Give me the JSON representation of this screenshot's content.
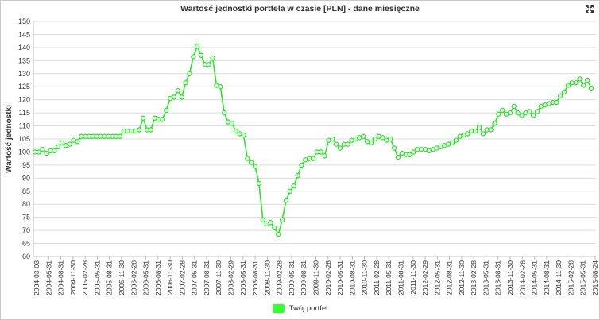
{
  "chart_data": {
    "type": "line",
    "title": "Wartość jednostki portfela w czasie [PLN] - dane miesięczne",
    "ylabel": "Wartość jednostki",
    "xlabel": "",
    "ylim": [
      60,
      150
    ],
    "yticks": [
      60,
      65,
      70,
      75,
      80,
      85,
      90,
      95,
      100,
      105,
      110,
      115,
      120,
      125,
      130,
      135,
      140,
      145,
      150
    ],
    "grid": true,
    "legend_position": "bottom",
    "x_tick_labels": [
      "2004-03-03",
      "2004-05-31",
      "2004-08-31",
      "2004-11-30",
      "2005-02-28",
      "2005-05-31",
      "2005-08-31",
      "2005-11-30",
      "2006-02-28",
      "2006-05-31",
      "2006-08-31",
      "2006-11-30",
      "2007-02-28",
      "2007-05-31",
      "2007-08-31",
      "2007-11-30",
      "2008-02-29",
      "2008-05-31",
      "2008-08-31",
      "2008-11-30",
      "2009-02-28",
      "2009-05-31",
      "2009-08-31",
      "2009-11-30",
      "2010-02-28",
      "2010-05-31",
      "2010-08-31",
      "2010-11-30",
      "2011-02-28",
      "2011-05-31",
      "2011-08-31",
      "2011-11-30",
      "2012-02-29",
      "2012-05-31",
      "2012-08-31",
      "2012-11-30",
      "2013-02-28",
      "2013-05-31",
      "2013-08-31",
      "2013-11-30",
      "2014-02-28",
      "2014-05-31",
      "2014-08-31",
      "2014-11-30",
      "2015-02-28",
      "2015-05-31",
      "2015-08-24"
    ],
    "series": [
      {
        "name": "Twój portfel",
        "color": "#33ff33",
        "stroke_color": "#33dd33",
        "values": [
          100,
          100,
          101,
          99.5,
          100.5,
          100.5,
          102,
          103.5,
          102.5,
          103,
          104.5,
          104,
          106,
          106,
          106,
          106,
          106,
          106,
          106,
          106,
          106,
          106,
          106,
          108,
          108,
          108,
          108,
          108.5,
          113,
          108.5,
          108.5,
          113,
          112.5,
          112.5,
          116,
          120.5,
          121,
          123.5,
          121,
          126.5,
          130,
          136.5,
          140.5,
          137,
          133.5,
          133.5,
          136,
          125.5,
          125,
          115,
          111.5,
          111,
          108,
          107,
          106.5,
          97.5,
          96,
          94.5,
          88,
          74,
          72.5,
          73,
          71,
          68.5,
          74,
          81.5,
          85,
          87,
          91,
          95,
          97,
          97.5,
          97.5,
          100,
          100,
          98.5,
          104.5,
          105,
          103,
          101.5,
          103,
          103,
          104.5,
          105,
          105.5,
          106,
          104,
          103.5,
          105,
          106,
          105.5,
          104.5,
          105,
          101.5,
          98,
          99.5,
          99,
          99,
          100,
          101,
          101,
          101,
          100.5,
          101,
          101.5,
          102,
          102.5,
          103,
          103.5,
          104.5,
          106,
          106.5,
          107,
          108,
          108,
          109.5,
          107,
          108.5,
          108.5,
          111,
          114.5,
          116,
          114.5,
          115,
          117.5,
          115,
          114,
          115,
          115.5,
          114,
          115.5,
          117.5,
          118,
          118.5,
          119,
          119,
          121.5,
          123,
          125.5,
          126.5,
          126.5,
          128,
          125.5,
          127.5,
          124.5
        ]
      }
    ]
  }
}
